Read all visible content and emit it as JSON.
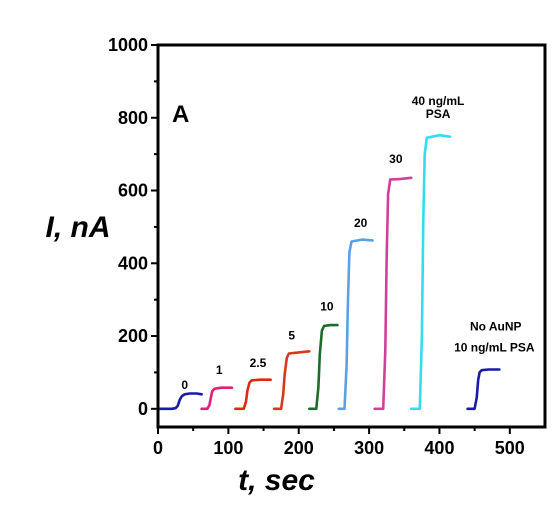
{
  "chart_data": {
    "type": "line",
    "panel_label": "A",
    "xlabel": "t, sec",
    "ylabel": "I, nA",
    "xlim": [
      0,
      550
    ],
    "ylim": [
      -50,
      1000
    ],
    "xticks": [
      0,
      100,
      200,
      300,
      400,
      500
    ],
    "yticks": [
      0,
      200,
      400,
      600,
      800,
      1000
    ],
    "series": [
      {
        "label": "0",
        "color": "#1a1aa6",
        "x": [
          0,
          20,
          25,
          28,
          31,
          34,
          38,
          45,
          55,
          62
        ],
        "y": [
          0,
          0,
          2,
          8,
          25,
          35,
          40,
          42,
          42,
          40
        ]
      },
      {
        "label": "1",
        "color": "#e0207a",
        "x": [
          62,
          70,
          73,
          75,
          77,
          80,
          90,
          105
        ],
        "y": [
          0,
          0,
          10,
          30,
          48,
          55,
          58,
          58
        ]
      },
      {
        "label": "2.5",
        "color": "#e02a10",
        "x": [
          110,
          122,
          125,
          127,
          130,
          133,
          145,
          160
        ],
        "y": [
          0,
          0,
          20,
          50,
          72,
          78,
          80,
          80
        ]
      },
      {
        "label": "5",
        "color": "#d63a1a",
        "x": [
          165,
          175,
          178,
          180,
          183,
          186,
          200,
          215
        ],
        "y": [
          0,
          0,
          40,
          95,
          140,
          152,
          155,
          158
        ]
      },
      {
        "label": "10",
        "color": "#1f6b2a",
        "x": [
          215,
          225,
          228,
          230,
          233,
          236,
          245,
          255
        ],
        "y": [
          0,
          0,
          60,
          150,
          215,
          228,
          230,
          230
        ]
      },
      {
        "label": "20",
        "color": "#5aa0e6",
        "x": [
          257,
          265,
          268,
          270,
          272,
          275,
          290,
          305
        ],
        "y": [
          0,
          0,
          120,
          300,
          430,
          460,
          465,
          463
        ]
      },
      {
        "label": "30",
        "color": "#d0409a",
        "x": [
          308,
          320,
          323,
          325,
          327,
          330,
          345,
          360
        ],
        "y": [
          0,
          0,
          160,
          420,
          590,
          630,
          632,
          635
        ]
      },
      {
        "label": "40 ng/mL PSA",
        "color": "#33ddee",
        "x": [
          360,
          372,
          375,
          377,
          379,
          382,
          400,
          415
        ],
        "y": [
          0,
          0,
          200,
          520,
          700,
          745,
          752,
          748
        ]
      },
      {
        "label": "No AuNP 10 ng/mL PSA",
        "color": "#1a1aa6",
        "x": [
          440,
          450,
          453,
          455,
          457,
          460,
          470,
          485
        ],
        "y": [
          0,
          0,
          30,
          80,
          100,
          106,
          108,
          108
        ]
      }
    ],
    "annotations": [
      {
        "text": "0",
        "x": 38,
        "y": 55
      },
      {
        "text": "1",
        "x": 87,
        "y": 95
      },
      {
        "text": "2.5",
        "x": 142,
        "y": 115
      },
      {
        "text": "5",
        "x": 190,
        "y": 190
      },
      {
        "text": "10",
        "x": 240,
        "y": 270
      },
      {
        "text": "20",
        "x": 288,
        "y": 500
      },
      {
        "text": "30",
        "x": 338,
        "y": 675
      },
      {
        "text": "40 ng/mL",
        "x": 398,
        "y": 835
      },
      {
        "text": "PSA",
        "x": 398,
        "y": 800
      },
      {
        "text": "No AuNP",
        "x": 480,
        "y": 215
      },
      {
        "text": "10 ng/mL PSA",
        "x": 478,
        "y": 158
      }
    ]
  }
}
